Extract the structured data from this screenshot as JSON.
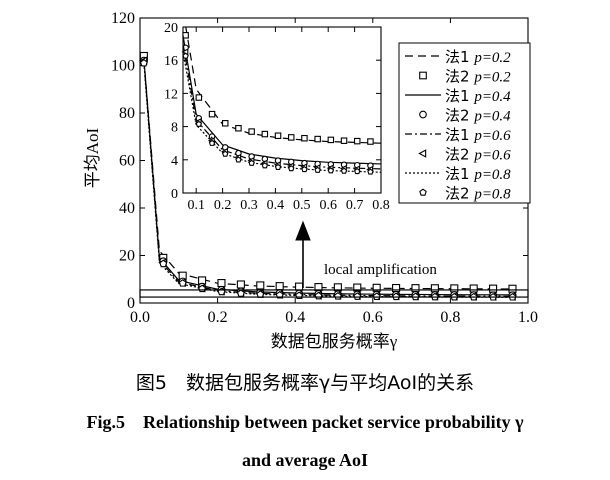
{
  "chart_data": {
    "type": "line",
    "main": {
      "ylabel": "平均AoI",
      "xlabel": "数据包服务概率γ",
      "xlim": [
        0.0,
        1.0
      ],
      "ylim": [
        0,
        120
      ],
      "xticks": [
        "0.0",
        "0.2",
        "0.4",
        "0.6",
        "0.8",
        "1.0"
      ],
      "yticks": [
        "0",
        "20",
        "40",
        "60",
        "80",
        "100",
        "120"
      ],
      "annotation": "local amplification"
    },
    "inset": {
      "xlim": [
        0.05,
        0.8
      ],
      "ylim": [
        0,
        20
      ],
      "xticks": [
        "0.1",
        "0.2",
        "0.3",
        "0.4",
        "0.5",
        "0.6",
        "0.7",
        "0.8"
      ],
      "yticks": [
        "0",
        "4",
        "8",
        "12",
        "16",
        "20"
      ]
    },
    "legend": {
      "position": "top-right",
      "entries": [
        {
          "method": "法1",
          "p": "p=0.2",
          "marker": "dash"
        },
        {
          "method": "法2",
          "p": "p=0.2",
          "marker": "square"
        },
        {
          "method": "法1",
          "p": "p=0.4",
          "marker": "solid"
        },
        {
          "method": "法2",
          "p": "p=0.4",
          "marker": "circle"
        },
        {
          "method": "法1",
          "p": "p=0.6",
          "marker": "dashdot"
        },
        {
          "method": "法2",
          "p": "p=0.6",
          "marker": "triangle"
        },
        {
          "method": "法1",
          "p": "p=0.8",
          "marker": "dotted"
        },
        {
          "method": "法2",
          "p": "p=0.8",
          "marker": "pentagon"
        }
      ]
    },
    "series": [
      {
        "name": "法1 p=0.2",
        "style": "dash",
        "x": [
          0.01,
          0.05,
          0.1,
          0.2,
          0.3,
          0.4,
          0.5,
          0.6,
          0.7,
          0.8,
          0.9,
          0.97
        ],
        "y": [
          103,
          22,
          12.5,
          8.3,
          7.2,
          6.7,
          6.4,
          6.2,
          6.1,
          6.0,
          5.95,
          5.9
        ]
      },
      {
        "name": "法2 p=0.2",
        "style": "square",
        "x": [
          0.01,
          0.06,
          0.11,
          0.16,
          0.21,
          0.26,
          0.31,
          0.36,
          0.41,
          0.46,
          0.51,
          0.56,
          0.61,
          0.66,
          0.71,
          0.76,
          0.81,
          0.86,
          0.91,
          0.96
        ],
        "y": [
          104,
          19,
          11.5,
          9.5,
          8.4,
          7.8,
          7.4,
          7.1,
          6.9,
          6.7,
          6.6,
          6.5,
          6.4,
          6.3,
          6.25,
          6.2,
          6.15,
          6.1,
          6.05,
          6.0
        ]
      },
      {
        "name": "法1 p=0.4",
        "style": "solid",
        "x": [
          0.01,
          0.05,
          0.1,
          0.2,
          0.3,
          0.4,
          0.5,
          0.6,
          0.7,
          0.8,
          0.9,
          0.97
        ],
        "y": [
          103,
          19,
          9.5,
          5.8,
          4.7,
          4.2,
          3.9,
          3.7,
          3.6,
          3.5,
          3.45,
          3.4
        ]
      },
      {
        "name": "法2 p=0.4",
        "style": "circle",
        "x": [
          0.01,
          0.06,
          0.11,
          0.16,
          0.21,
          0.26,
          0.31,
          0.36,
          0.41,
          0.46,
          0.51,
          0.56,
          0.61,
          0.66,
          0.71,
          0.76,
          0.81,
          0.86,
          0.91,
          0.96
        ],
        "y": [
          102,
          17.5,
          9.0,
          6.8,
          5.5,
          4.8,
          4.4,
          4.1,
          3.9,
          3.75,
          3.6,
          3.5,
          3.45,
          3.4,
          3.35,
          3.3,
          3.3,
          3.25,
          3.2,
          3.2
        ]
      },
      {
        "name": "法1 p=0.6",
        "style": "dashdot",
        "x": [
          0.01,
          0.05,
          0.1,
          0.2,
          0.3,
          0.4,
          0.5,
          0.6,
          0.7,
          0.8,
          0.9,
          0.97
        ],
        "y": [
          102,
          18,
          8.8,
          5.2,
          4.1,
          3.6,
          3.3,
          3.1,
          3.0,
          2.9,
          2.85,
          2.8
        ]
      },
      {
        "name": "法2 p=0.6",
        "style": "triangle",
        "x": [
          0.01,
          0.06,
          0.11,
          0.16,
          0.21,
          0.26,
          0.31,
          0.36,
          0.41,
          0.46,
          0.51,
          0.56,
          0.61,
          0.66,
          0.71,
          0.76,
          0.81,
          0.86,
          0.91,
          0.96
        ],
        "y": [
          102,
          17,
          8.6,
          6.3,
          5.0,
          4.3,
          3.9,
          3.6,
          3.4,
          3.25,
          3.15,
          3.05,
          3.0,
          2.95,
          2.9,
          2.85,
          2.8,
          2.8,
          2.75,
          2.75
        ]
      },
      {
        "name": "法1 p=0.8",
        "style": "dotted",
        "x": [
          0.01,
          0.05,
          0.1,
          0.2,
          0.3,
          0.4,
          0.5,
          0.6,
          0.7,
          0.8,
          0.9,
          0.97
        ],
        "y": [
          101,
          17,
          8.2,
          4.8,
          3.7,
          3.2,
          2.9,
          2.7,
          2.6,
          2.5,
          2.45,
          2.4
        ]
      },
      {
        "name": "法2 p=0.8",
        "style": "pentagon",
        "x": [
          0.01,
          0.06,
          0.11,
          0.16,
          0.21,
          0.26,
          0.31,
          0.36,
          0.41,
          0.46,
          0.51,
          0.56,
          0.61,
          0.66,
          0.71,
          0.76,
          0.81,
          0.86,
          0.91,
          0.96
        ],
        "y": [
          101,
          16.5,
          8.3,
          6.0,
          4.7,
          4.0,
          3.6,
          3.3,
          3.1,
          2.95,
          2.85,
          2.75,
          2.7,
          2.65,
          2.6,
          2.55,
          2.5,
          2.5,
          2.45,
          2.45
        ]
      }
    ]
  },
  "caption": {
    "cn": "图5　数据包服务概率γ与平均AoI的关系",
    "en_line1": "Fig.5　Relationship between packet service probability γ",
    "en_line2": "and average AoI"
  }
}
